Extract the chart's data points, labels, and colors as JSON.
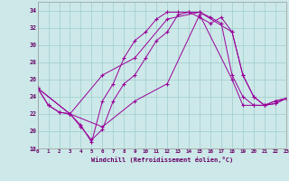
{
  "bg_color": "#cce8e8",
  "line_color": "#990099",
  "ylim": [
    18,
    35
  ],
  "xlim": [
    0,
    23
  ],
  "yticks": [
    18,
    20,
    22,
    24,
    26,
    28,
    30,
    32,
    34
  ],
  "xticks": [
    0,
    1,
    2,
    3,
    4,
    5,
    6,
    7,
    8,
    9,
    10,
    11,
    12,
    13,
    14,
    15,
    16,
    17,
    18,
    19,
    20,
    21,
    22,
    23
  ],
  "xlabel": "Windchill (Refroidissement éolien,°C)",
  "line1_x": [
    0,
    1,
    2,
    3,
    4,
    5,
    6,
    7,
    8,
    9,
    10,
    11,
    12,
    13,
    14,
    15,
    16,
    17,
    18,
    19,
    20,
    21,
    22,
    23
  ],
  "line1_y": [
    25.0,
    23.0,
    22.2,
    22.0,
    20.7,
    18.7,
    23.5,
    25.5,
    28.5,
    30.5,
    31.5,
    33.0,
    33.8,
    33.8,
    33.8,
    33.2,
    32.5,
    33.2,
    31.5,
    26.5,
    24.0,
    23.0,
    23.5,
    23.8
  ],
  "line2_x": [
    0,
    1,
    2,
    3,
    4,
    5,
    6,
    7,
    8,
    9,
    10,
    11,
    12,
    13,
    14,
    15,
    16,
    17,
    18,
    19,
    20,
    21,
    22,
    23
  ],
  "line2_y": [
    25.0,
    23.0,
    22.2,
    22.0,
    20.5,
    19.0,
    20.2,
    23.5,
    25.5,
    26.5,
    28.5,
    30.5,
    31.5,
    33.5,
    33.8,
    33.8,
    33.2,
    32.5,
    26.5,
    24.0,
    23.0,
    23.0,
    23.5,
    23.8
  ],
  "line3_x": [
    0,
    3,
    6,
    9,
    12,
    15,
    18,
    19,
    20,
    21,
    22,
    23
  ],
  "line3_y": [
    25.0,
    22.0,
    26.5,
    28.5,
    33.0,
    33.8,
    31.5,
    26.5,
    24.0,
    23.0,
    23.2,
    23.8
  ],
  "line4_x": [
    0,
    3,
    6,
    9,
    12,
    15,
    18,
    19,
    20,
    21,
    22,
    23
  ],
  "line4_y": [
    25.0,
    22.0,
    20.5,
    23.5,
    25.5,
    33.5,
    26.0,
    23.0,
    23.0,
    23.0,
    23.2,
    23.8
  ]
}
